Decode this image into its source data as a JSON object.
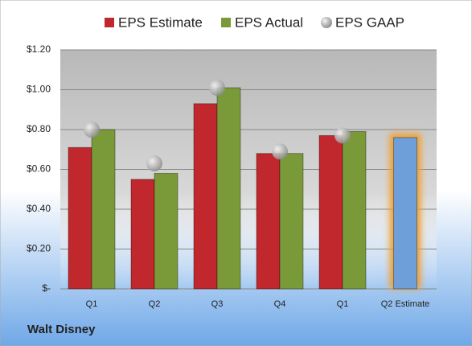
{
  "chart_data": {
    "type": "bar",
    "company": "Walt Disney",
    "categories": [
      "Q1",
      "Q2",
      "Q3",
      "Q4",
      "Q1",
      "Q2 Estimate"
    ],
    "series": [
      {
        "name": "EPS Estimate",
        "color": "#c0282d",
        "point_colors": [
          "#c0282d",
          "#c0282d",
          "#c0282d",
          "#c0282d",
          "#c0282d",
          "#6f9fd8"
        ],
        "values": [
          0.71,
          0.55,
          0.93,
          0.68,
          0.77,
          0.76
        ]
      },
      {
        "name": "EPS Actual",
        "color": "#7a9a3a",
        "values": [
          0.8,
          0.58,
          1.01,
          0.68,
          0.79,
          null
        ]
      },
      {
        "name": "EPS GAAP",
        "color": "#a8a8a8",
        "marker": "circle",
        "values": [
          0.8,
          0.63,
          1.01,
          0.69,
          0.77,
          null
        ]
      }
    ],
    "ylim": [
      0,
      1.2
    ],
    "yticks": [
      {
        "value": 0,
        "label": "$-"
      },
      {
        "value": 0.2,
        "label": "$0.20"
      },
      {
        "value": 0.4,
        "label": "$0.40"
      },
      {
        "value": 0.6,
        "label": "$0.60"
      },
      {
        "value": 0.8,
        "label": "$0.80"
      },
      {
        "value": 1.0,
        "label": "$1.00"
      },
      {
        "value": 1.2,
        "label": "$1.20"
      }
    ],
    "grid": true,
    "legend": "top"
  }
}
